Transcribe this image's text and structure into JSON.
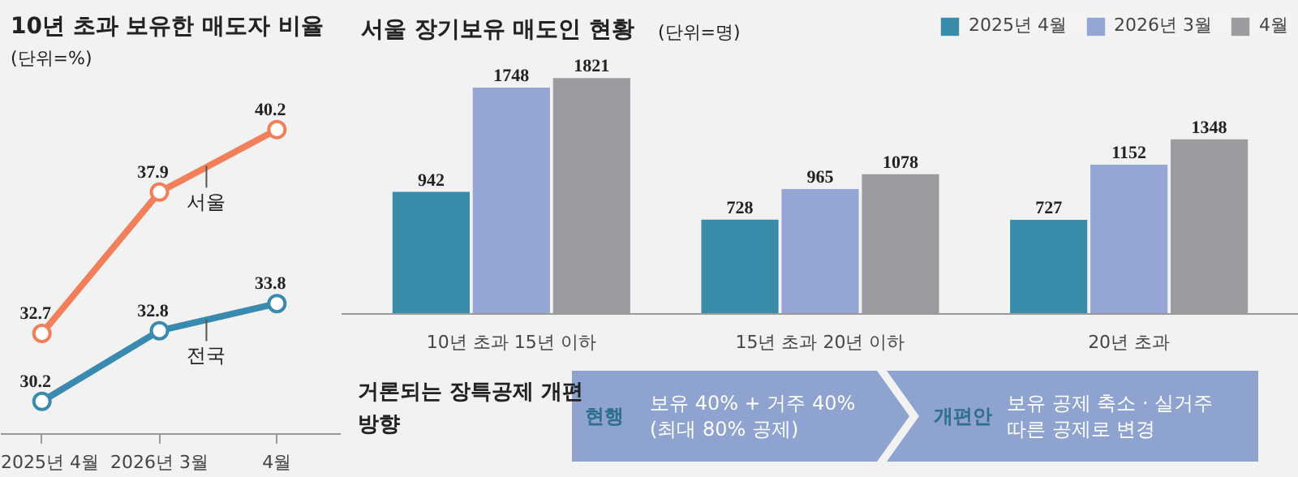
{
  "chart_data": [
    {
      "type": "line",
      "title": "10년 초과 보유한 매도자 비율",
      "subtitle": "(단위=%)",
      "categories": [
        "2025년 4월",
        "2026년 3월",
        "4월"
      ],
      "series": [
        {
          "name": "서울",
          "color": "#f07f5a",
          "values": [
            32.7,
            37.9,
            40.2
          ]
        },
        {
          "name": "전국",
          "color": "#3a8ab0",
          "values": [
            30.2,
            32.8,
            33.8
          ]
        }
      ],
      "data_labels": true,
      "marker": "circle",
      "legend": false,
      "grid": false,
      "tick_labels": "x"
    },
    {
      "type": "bar",
      "title": "서울 장기보유 매도인 현황",
      "subtitle": "(단위=명)",
      "categories": [
        "10년 초과 15년 이하",
        "15년 초과 20년 이하",
        "20년 초과"
      ],
      "series": [
        {
          "name": "2025년 4월",
          "color": "#3a8cab",
          "values": [
            942,
            728,
            727
          ]
        },
        {
          "name": "2026년 3월",
          "color": "#95a6d4",
          "values": [
            1748,
            965,
            1152
          ]
        },
        {
          "name": "4월",
          "color": "#9a9c9f",
          "values": [
            1821,
            1078,
            1348
          ]
        }
      ],
      "data_labels": true,
      "legend": "top right",
      "grid": false,
      "tick_labels": "x"
    },
    {
      "type": "other",
      "title": "거론되는 장특공제 개편 방향",
      "annotations": [
        "현행",
        "보유 40% + 거주 40%\n(최대 80% 공제)",
        "개편안",
        "보유 공제 축소 · 실거주\n따른 공제로 변경"
      ]
    }
  ]
}
